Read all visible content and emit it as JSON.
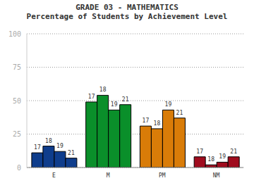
{
  "chart_data": {
    "type": "bar",
    "title": "GRADE 03 - MATHEMATICS",
    "subtitle": "Percentage of Students by Achievement Level",
    "categories": [
      "E",
      "M",
      "PM",
      "NM"
    ],
    "series": [
      {
        "name": "17",
        "values": [
          11,
          49,
          31,
          8
        ]
      },
      {
        "name": "18",
        "values": [
          16,
          54,
          29,
          2
        ]
      },
      {
        "name": "19",
        "values": [
          12,
          43,
          43,
          4
        ]
      },
      {
        "name": "21",
        "values": [
          7,
          47,
          37,
          8
        ]
      }
    ],
    "colors": [
      "#0f3d8c",
      "#0a8f2a",
      "#d97c08",
      "#a00c1e"
    ],
    "ylim": [
      0,
      100
    ],
    "yticks": [
      0,
      25,
      50,
      75,
      100
    ],
    "grid": true
  }
}
